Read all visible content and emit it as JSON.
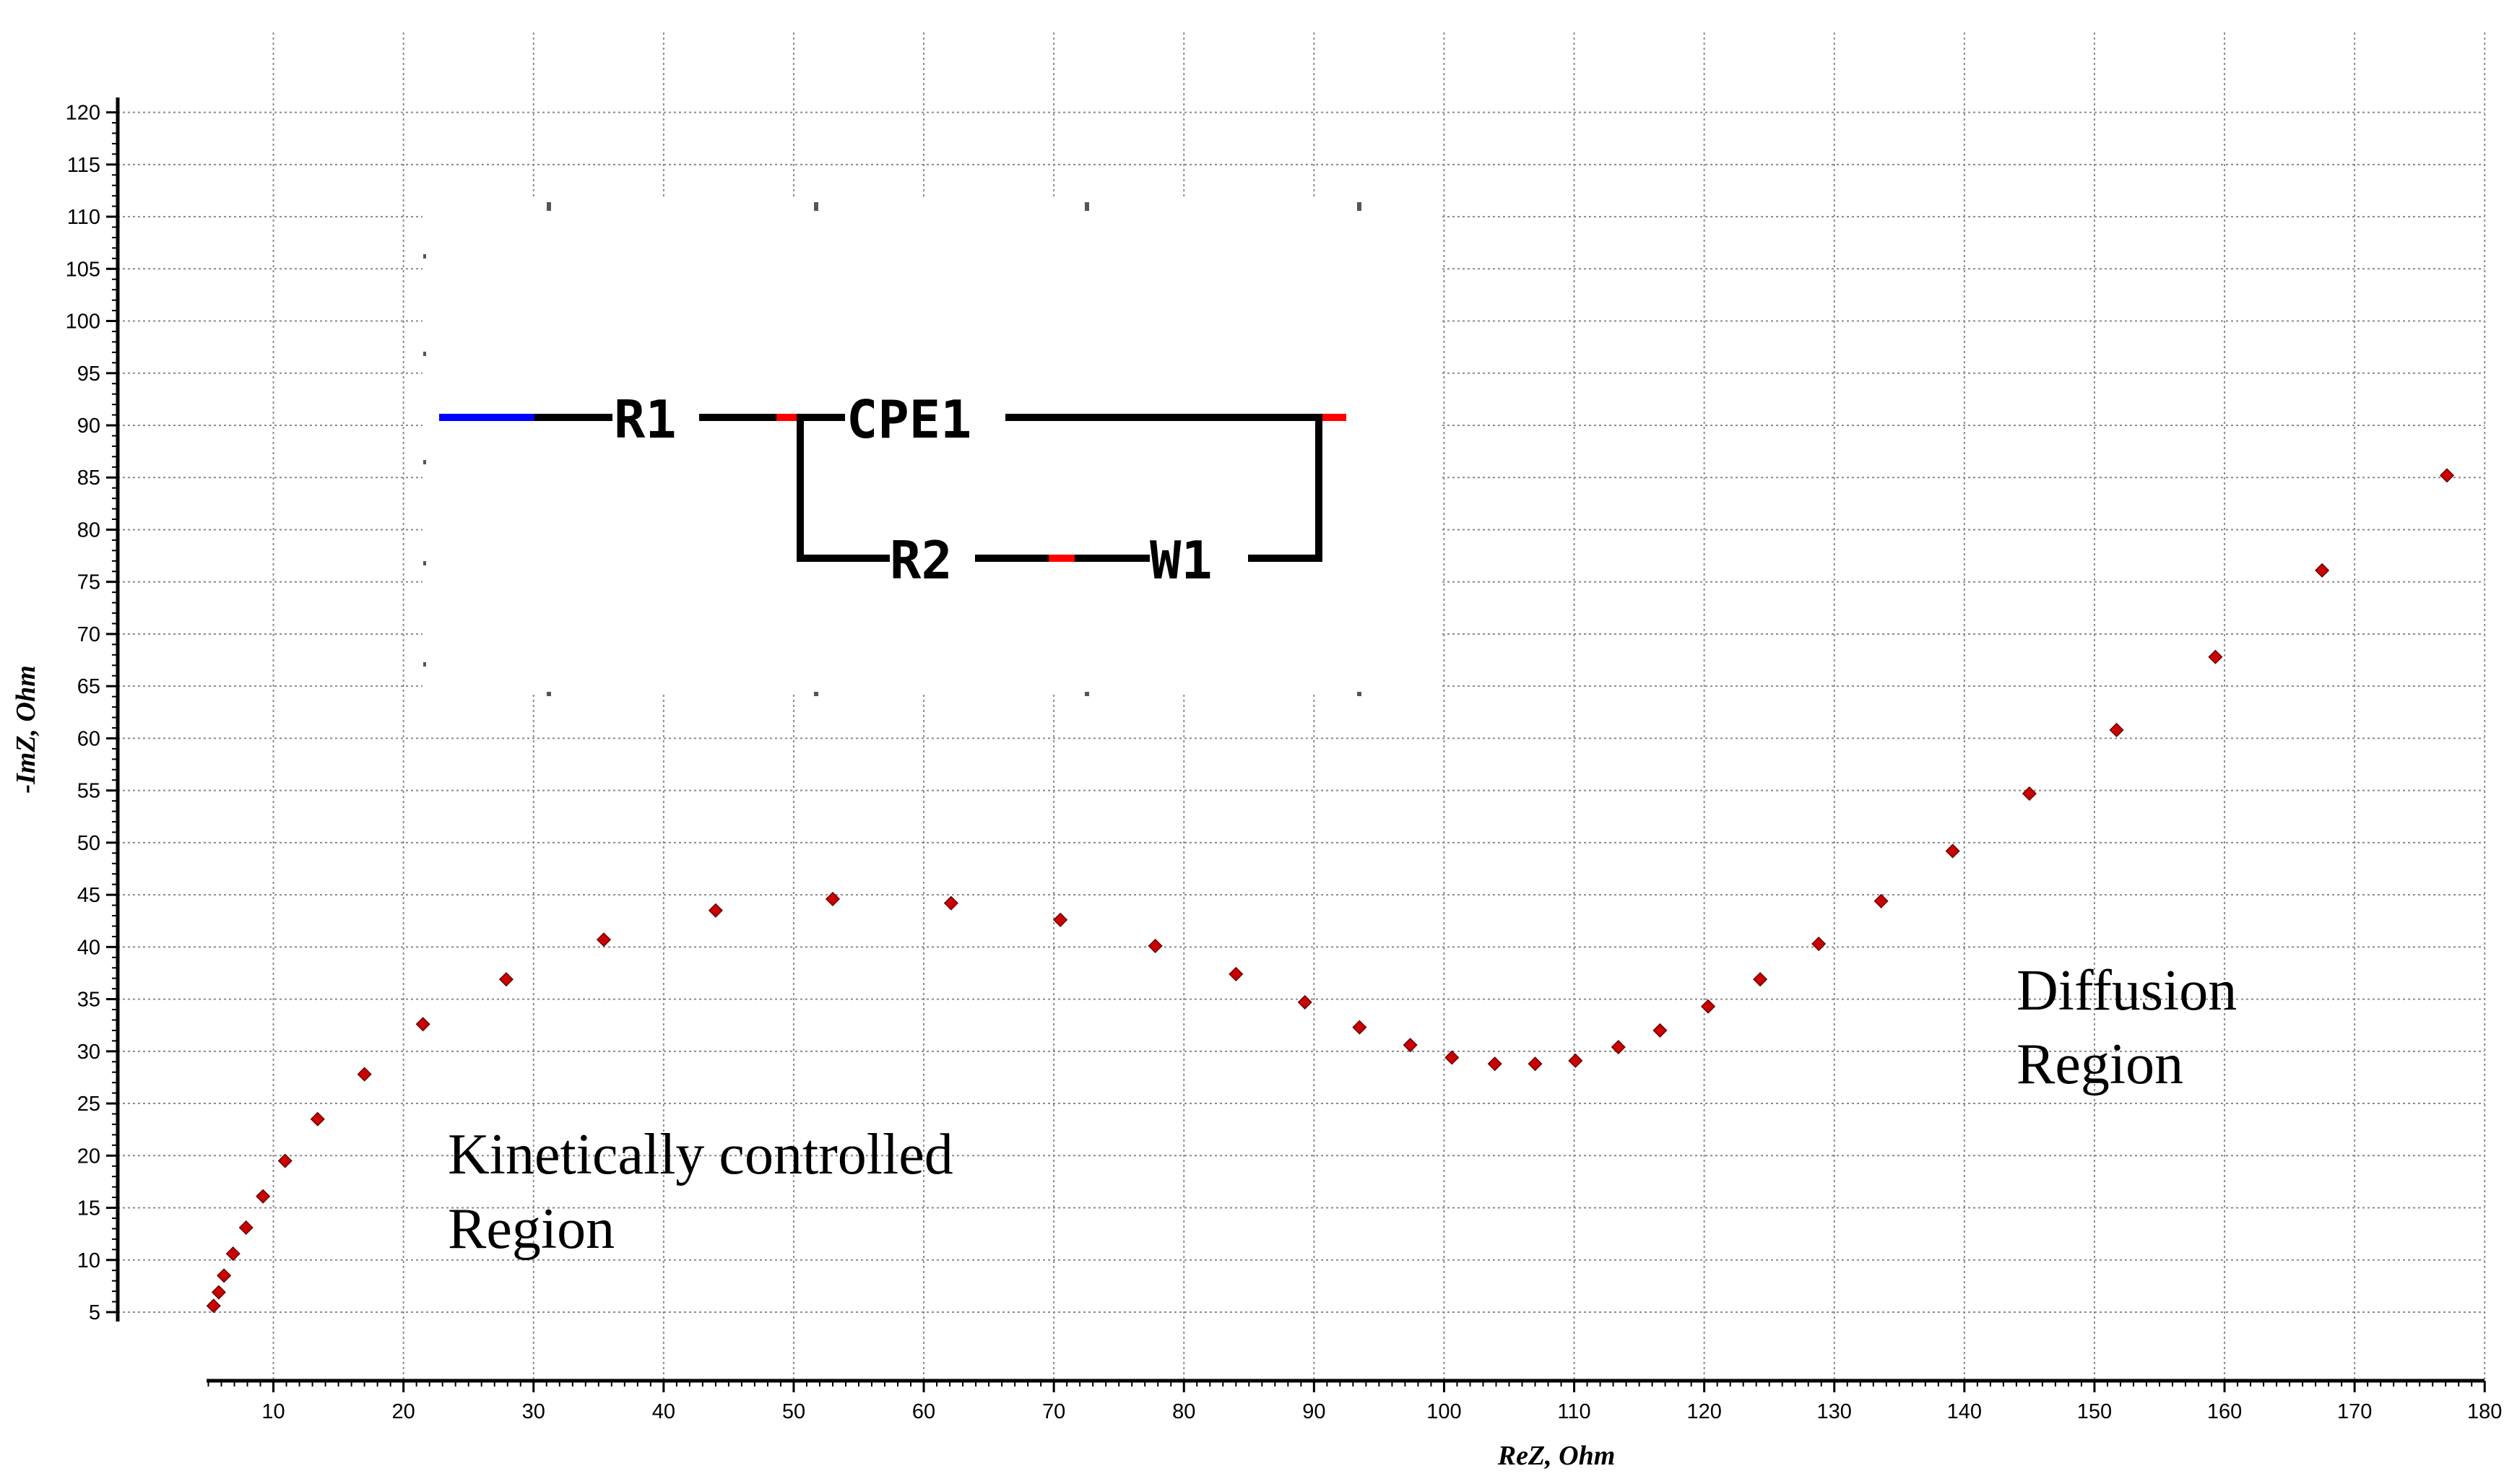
{
  "chart_data": {
    "type": "scatter",
    "xlabel": "ReZ, Ohm",
    "ylabel": "-ImZ, Ohm",
    "xlim": [
      5,
      180
    ],
    "ylim": [
      5,
      120
    ],
    "grid": true,
    "x_ticks": [
      10,
      20,
      30,
      40,
      50,
      60,
      70,
      80,
      90,
      100,
      110,
      120,
      130,
      140,
      150,
      160,
      170,
      180
    ],
    "x_tick_labels": [
      "10",
      "20",
      "30",
      "40",
      "50",
      "60",
      "70",
      "80",
      "90",
      "100",
      "110",
      "120",
      "130",
      "140",
      "150",
      "160",
      "170",
      "180"
    ],
    "y_ticks": [
      5,
      10,
      15,
      20,
      25,
      30,
      35,
      40,
      45,
      50,
      55,
      60,
      65,
      70,
      75,
      80,
      85,
      90,
      95,
      100,
      105,
      110,
      115,
      120
    ],
    "y_tick_labels": [
      "5",
      "10",
      "15",
      "20",
      "25",
      "30",
      "35",
      "40",
      "45",
      "50",
      "55",
      "60",
      "65",
      "70",
      "75",
      "80",
      "85",
      "90",
      "95",
      "100",
      "105",
      "110",
      "115",
      "120"
    ],
    "marker_color": "#cc0000",
    "series": [
      {
        "points": [
          [
            5.4,
            5.6
          ],
          [
            5.8,
            6.9
          ],
          [
            6.2,
            8.5
          ],
          [
            6.9,
            10.6
          ],
          [
            7.9,
            13.1
          ],
          [
            9.2,
            16.1
          ],
          [
            10.9,
            19.5
          ],
          [
            13.4,
            23.5
          ],
          [
            17.0,
            27.8
          ],
          [
            21.5,
            32.6
          ],
          [
            27.9,
            36.9
          ],
          [
            35.4,
            40.7
          ],
          [
            44.0,
            43.5
          ],
          [
            53.0,
            44.6
          ],
          [
            62.1,
            44.2
          ],
          [
            70.5,
            42.6
          ],
          [
            77.8,
            40.1
          ],
          [
            84.0,
            37.4
          ],
          [
            89.3,
            34.7
          ],
          [
            93.5,
            32.3
          ],
          [
            97.4,
            30.6
          ],
          [
            100.6,
            29.4
          ],
          [
            103.9,
            28.8
          ],
          [
            107.0,
            28.8
          ],
          [
            110.1,
            29.1
          ],
          [
            113.4,
            30.4
          ],
          [
            116.6,
            32.0
          ],
          [
            120.3,
            34.3
          ],
          [
            124.3,
            36.9
          ],
          [
            128.8,
            40.3
          ],
          [
            133.6,
            44.4
          ],
          [
            139.1,
            49.2
          ],
          [
            145.0,
            54.7
          ],
          [
            151.7,
            60.8
          ],
          [
            159.3,
            67.8
          ],
          [
            167.5,
            76.1
          ],
          [
            177.1,
            85.2
          ]
        ]
      }
    ],
    "annotations": [
      {
        "text_lines": [
          "Kinetically controlled",
          "Region"
        ]
      },
      {
        "text_lines": [
          "Diffusion",
          "Region"
        ]
      }
    ],
    "inset_circuit": {
      "labels": [
        "R1",
        "CPE1",
        "R2",
        "W1"
      ],
      "colors": {
        "wire": "#000000",
        "input": "#0000ff",
        "node": "#ff0000"
      }
    }
  }
}
